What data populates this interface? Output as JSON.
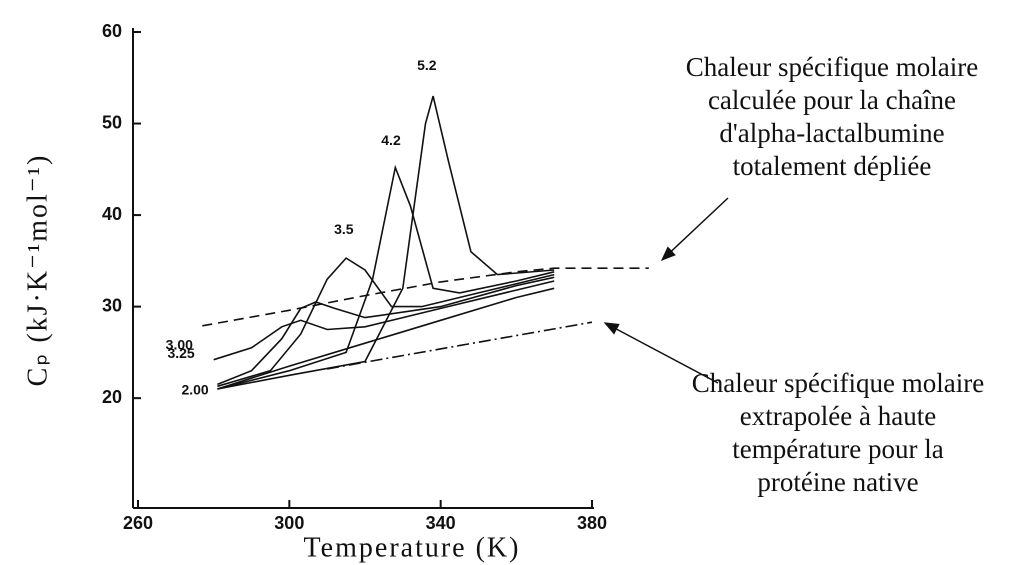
{
  "chart_data": {
    "type": "line",
    "x_label": "Temperature (K)",
    "y_label": "Cₚ (kJ·K⁻¹mol⁻¹)",
    "xlim": [
      260,
      380
    ],
    "xticks": [
      260,
      300,
      340,
      380
    ],
    "ylim": [
      8,
      60
    ],
    "yticks": [
      20,
      30,
      40,
      50,
      60
    ],
    "series": [
      {
        "name": "2.00",
        "color": "#111111",
        "dash": "solid",
        "x": [
          281,
          300,
          320,
          340,
          360,
          370
        ],
        "values": [
          21,
          23.5,
          26,
          28.5,
          31,
          32
        ]
      },
      {
        "name": "3.00",
        "color": "#111111",
        "dash": "solid",
        "x": [
          280,
          290,
          298,
          303,
          310,
          320,
          340,
          360,
          370
        ],
        "values": [
          24.2,
          25.5,
          27.8,
          28.5,
          27.5,
          27.8,
          29.8,
          31.8,
          32.8
        ]
      },
      {
        "name": "3.25",
        "color": "#111111",
        "dash": "solid",
        "x": [
          281,
          290,
          298,
          303,
          307,
          312,
          320,
          340,
          360,
          370
        ],
        "values": [
          21.5,
          23,
          26.5,
          29.8,
          30.5,
          29.8,
          28.8,
          30,
          32.3,
          33.2
        ]
      },
      {
        "name": "3.5",
        "color": "#111111",
        "dash": "solid",
        "x": [
          281,
          295,
          303,
          310,
          315,
          320,
          327,
          335,
          350,
          370
        ],
        "values": [
          21.3,
          23,
          27,
          33,
          35.3,
          34,
          30,
          30,
          31.5,
          33.5
        ]
      },
      {
        "name": "4.2",
        "color": "#111111",
        "dash": "solid",
        "x": [
          281,
          300,
          315,
          322,
          328,
          332,
          338,
          345,
          360,
          370
        ],
        "values": [
          21,
          23,
          25,
          33,
          45.2,
          41,
          32,
          31.5,
          32.8,
          33.8
        ]
      },
      {
        "name": "5.2",
        "color": "#111111",
        "dash": "solid",
        "x": [
          281,
          300,
          320,
          330,
          336,
          338,
          342,
          348,
          355,
          370
        ],
        "values": [
          21,
          22.5,
          24,
          32,
          50,
          53,
          46,
          36,
          33.5,
          34
        ]
      },
      {
        "color": "#111111",
        "dash": "dashed",
        "x": [
          277,
          300,
          320,
          340,
          360,
          370,
          395
        ],
        "values": [
          27.9,
          29.6,
          31.2,
          32.7,
          33.8,
          34.2,
          34.2
        ]
      },
      {
        "color": "#111111",
        "dash": "dashdot",
        "x": [
          310,
          380
        ],
        "values": [
          23.2,
          28.3
        ]
      }
    ],
    "annotations": [
      {
        "lines": [
          "Chaleur spécifique molaire",
          "calculée pour la chaîne",
          "d'alpha-lactalbumine",
          "totalement dépliée"
        ]
      },
      {
        "lines": [
          "Chaleur spécifique molaire",
          "extrapolée à haute",
          "température pour la",
          "protéine native"
        ]
      }
    ]
  }
}
